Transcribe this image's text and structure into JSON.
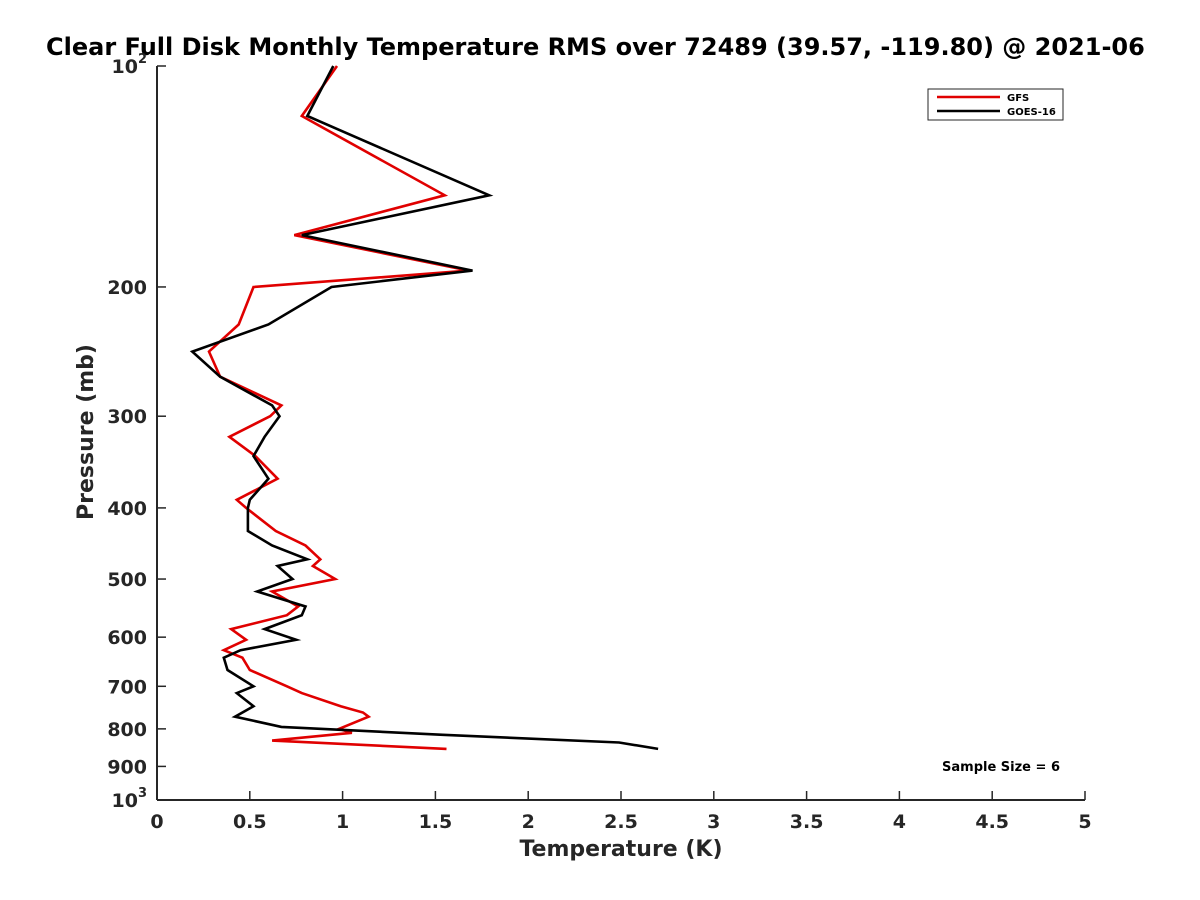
{
  "chart_data": {
    "type": "line",
    "title": "Clear Full Disk Monthly Temperature RMS over 72489 (39.57, -119.80) @ 2021-06",
    "xlabel": "Temperature (K)",
    "ylabel": "Pressure (mb)",
    "xlim": [
      0,
      5
    ],
    "ylim": [
      100,
      1000
    ],
    "yscale": "log",
    "y_reversed": true,
    "x_ticks": [
      "0",
      "0.5",
      "1",
      "1.5",
      "2",
      "2.5",
      "3",
      "3.5",
      "4",
      "4.5",
      "5"
    ],
    "x_tick_values": [
      0,
      0.5,
      1,
      1.5,
      2,
      2.5,
      3,
      3.5,
      4,
      4.5,
      5
    ],
    "y_ticks": [
      {
        "value": 100,
        "base": "10",
        "exp": "2"
      },
      {
        "value": 200,
        "label": "200"
      },
      {
        "value": 300,
        "label": "300"
      },
      {
        "value": 400,
        "label": "400"
      },
      {
        "value": 500,
        "label": "500"
      },
      {
        "value": 600,
        "label": "600"
      },
      {
        "value": 700,
        "label": "700"
      },
      {
        "value": 800,
        "label": "800"
      },
      {
        "value": 900,
        "label": "900"
      },
      {
        "value": 1000,
        "base": "10",
        "exp": "3"
      }
    ],
    "legend_position": "top-right",
    "series": [
      {
        "name": "GFS",
        "color": "#e00000",
        "points": [
          [
            0.97,
            100
          ],
          [
            0.78,
            117
          ],
          [
            1.55,
            150
          ],
          [
            0.74,
            170
          ],
          [
            1.68,
            190
          ],
          [
            0.52,
            200
          ],
          [
            0.44,
            225
          ],
          [
            0.28,
            245
          ],
          [
            0.34,
            265
          ],
          [
            0.67,
            290
          ],
          [
            0.61,
            300
          ],
          [
            0.39,
            320
          ],
          [
            0.53,
            340
          ],
          [
            0.65,
            365
          ],
          [
            0.43,
            390
          ],
          [
            0.48,
            400
          ],
          [
            0.64,
            430
          ],
          [
            0.8,
            450
          ],
          [
            0.88,
            470
          ],
          [
            0.84,
            480
          ],
          [
            0.96,
            500
          ],
          [
            0.62,
            520
          ],
          [
            0.76,
            545
          ],
          [
            0.7,
            560
          ],
          [
            0.4,
            585
          ],
          [
            0.48,
            605
          ],
          [
            0.36,
            625
          ],
          [
            0.46,
            640
          ],
          [
            0.5,
            665
          ],
          [
            0.7,
            700
          ],
          [
            0.78,
            715
          ],
          [
            0.99,
            745
          ],
          [
            1.11,
            760
          ],
          [
            1.14,
            770
          ],
          [
            0.98,
            800
          ],
          [
            1.05,
            810
          ],
          [
            0.62,
            830
          ],
          [
            1.56,
            852
          ]
        ]
      },
      {
        "name": "GOES-16",
        "color": "#000000",
        "points": [
          [
            0.95,
            100
          ],
          [
            0.81,
            117
          ],
          [
            1.79,
            150
          ],
          [
            0.78,
            170
          ],
          [
            1.7,
            190
          ],
          [
            0.94,
            200
          ],
          [
            0.6,
            225
          ],
          [
            0.19,
            245
          ],
          [
            0.34,
            265
          ],
          [
            0.62,
            290
          ],
          [
            0.66,
            300
          ],
          [
            0.58,
            320
          ],
          [
            0.52,
            340
          ],
          [
            0.6,
            365
          ],
          [
            0.5,
            390
          ],
          [
            0.49,
            400
          ],
          [
            0.49,
            430
          ],
          [
            0.62,
            450
          ],
          [
            0.81,
            470
          ],
          [
            0.65,
            480
          ],
          [
            0.73,
            500
          ],
          [
            0.54,
            520
          ],
          [
            0.8,
            545
          ],
          [
            0.78,
            560
          ],
          [
            0.58,
            585
          ],
          [
            0.75,
            605
          ],
          [
            0.45,
            625
          ],
          [
            0.36,
            640
          ],
          [
            0.38,
            665
          ],
          [
            0.52,
            700
          ],
          [
            0.43,
            715
          ],
          [
            0.52,
            745
          ],
          [
            0.42,
            770
          ],
          [
            0.67,
            795
          ],
          [
            1.54,
            815
          ],
          [
            2.49,
            835
          ],
          [
            2.7,
            852
          ]
        ]
      }
    ],
    "annotation": "Sample Size = 6"
  }
}
